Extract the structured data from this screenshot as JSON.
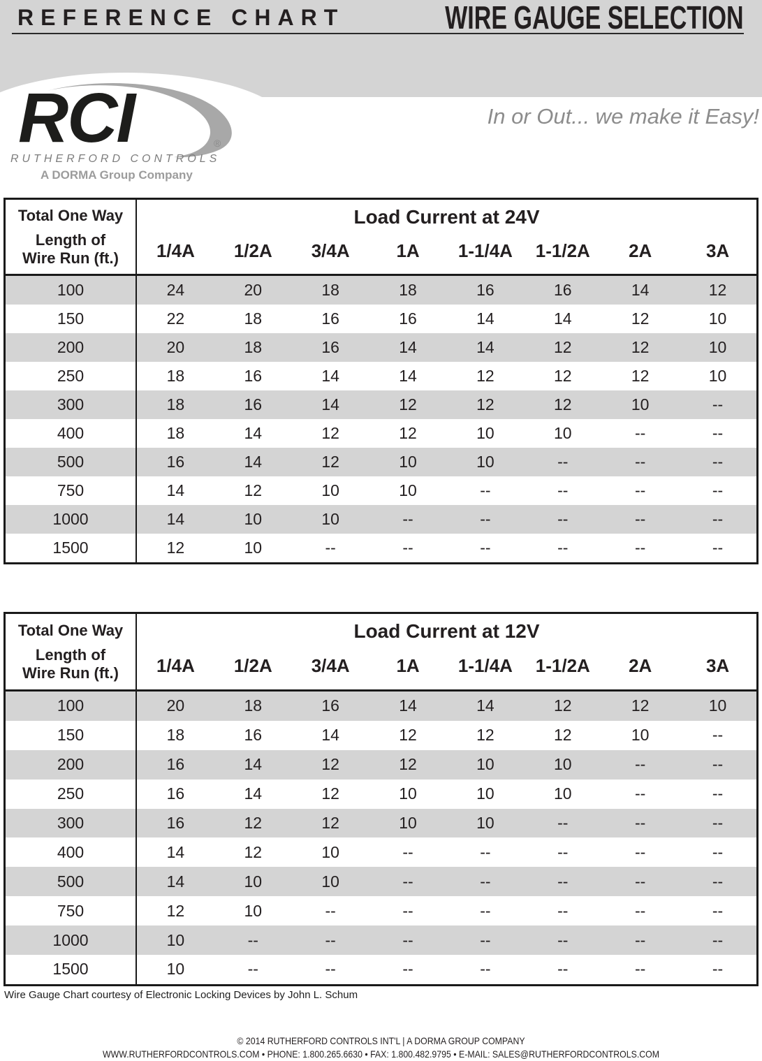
{
  "colors": {
    "band": "#d4d4d4",
    "stripe": "#d4d4d4",
    "ink": "#231f20",
    "border": "#1a1a1a",
    "logo_black": "#1d1d1b",
    "swoosh": "#a8a8a8",
    "registered_gray": "#8a8a8a",
    "subtitle_gray": "#7d7d7d",
    "tagline_gray": "#9c9c9c",
    "slogan_gray": "#8c8c8c"
  },
  "header": {
    "left_title": "REFERENCE CHART",
    "right_title": "WIRE GAUGE SELECTION"
  },
  "logo": {
    "name": "RCI",
    "registered": "®",
    "subtitle": "RUTHERFORD CONTROLS",
    "tagline": "A DORMA Group Company"
  },
  "slogan": "In or Out... we make it Easy!",
  "tables": [
    {
      "title": "Load Current at 24V",
      "row_header_lines": [
        "Total One Way",
        "Length of",
        "Wire Run (ft.)"
      ],
      "columns": [
        "1/4A",
        "1/2A",
        "3/4A",
        "1A",
        "1-1/4A",
        "1-1/2A",
        "2A",
        "3A"
      ],
      "rows": [
        {
          "length": "100",
          "values": [
            "24",
            "20",
            "18",
            "18",
            "16",
            "16",
            "14",
            "12"
          ]
        },
        {
          "length": "150",
          "values": [
            "22",
            "18",
            "16",
            "16",
            "14",
            "14",
            "12",
            "10"
          ]
        },
        {
          "length": "200",
          "values": [
            "20",
            "18",
            "16",
            "14",
            "14",
            "12",
            "12",
            "10"
          ]
        },
        {
          "length": "250",
          "values": [
            "18",
            "16",
            "14",
            "14",
            "12",
            "12",
            "12",
            "10"
          ]
        },
        {
          "length": "300",
          "values": [
            "18",
            "16",
            "14",
            "12",
            "12",
            "12",
            "10",
            "--"
          ]
        },
        {
          "length": "400",
          "values": [
            "18",
            "14",
            "12",
            "12",
            "10",
            "10",
            "--",
            "--"
          ]
        },
        {
          "length": "500",
          "values": [
            "16",
            "14",
            "12",
            "10",
            "10",
            "--",
            "--",
            "--"
          ]
        },
        {
          "length": "750",
          "values": [
            "14",
            "12",
            "10",
            "10",
            "--",
            "--",
            "--",
            "--"
          ]
        },
        {
          "length": "1000",
          "values": [
            "14",
            "10",
            "10",
            "--",
            "--",
            "--",
            "--",
            "--"
          ]
        },
        {
          "length": "1500",
          "values": [
            "12",
            "10",
            "--",
            "--",
            "--",
            "--",
            "--",
            "--"
          ]
        }
      ]
    },
    {
      "title": "Load Current at 12V",
      "row_header_lines": [
        "Total One Way",
        "Length of",
        "Wire Run (ft.)"
      ],
      "columns": [
        "1/4A",
        "1/2A",
        "3/4A",
        "1A",
        "1-1/4A",
        "1-1/2A",
        "2A",
        "3A"
      ],
      "rows": [
        {
          "length": "100",
          "values": [
            "20",
            "18",
            "16",
            "14",
            "14",
            "12",
            "12",
            "10"
          ]
        },
        {
          "length": "150",
          "values": [
            "18",
            "16",
            "14",
            "12",
            "12",
            "12",
            "10",
            "--"
          ]
        },
        {
          "length": "200",
          "values": [
            "16",
            "14",
            "12",
            "12",
            "10",
            "10",
            "--",
            "--"
          ]
        },
        {
          "length": "250",
          "values": [
            "16",
            "14",
            "12",
            "10",
            "10",
            "10",
            "--",
            "--"
          ]
        },
        {
          "length": "300",
          "values": [
            "16",
            "12",
            "12",
            "10",
            "10",
            "--",
            "--",
            "--"
          ]
        },
        {
          "length": "400",
          "values": [
            "14",
            "12",
            "10",
            "--",
            "--",
            "--",
            "--",
            "--"
          ]
        },
        {
          "length": "500",
          "values": [
            "14",
            "10",
            "10",
            "--",
            "--",
            "--",
            "--",
            "--"
          ]
        },
        {
          "length": "750",
          "values": [
            "12",
            "10",
            "--",
            "--",
            "--",
            "--",
            "--",
            "--"
          ]
        },
        {
          "length": "1000",
          "values": [
            "10",
            "--",
            "--",
            "--",
            "--",
            "--",
            "--",
            "--"
          ]
        },
        {
          "length": "1500",
          "values": [
            "10",
            "--",
            "--",
            "--",
            "--",
            "--",
            "--",
            "--"
          ]
        }
      ]
    }
  ],
  "caption": "Wire Gauge Chart courtesy of Electronic Locking Devices by John L. Schum",
  "footer": {
    "line1": "© 2014 RUTHERFORD CONTROLS INT'L | A DORMA GROUP COMPANY",
    "line2": "WWW.RUTHERFORDCONTROLS.COM • PHONE: 1.800.265.6630 • FAX: 1.800.482.9795 • E-MAIL: SALES@RUTHERFORDCONTROLS.COM"
  }
}
